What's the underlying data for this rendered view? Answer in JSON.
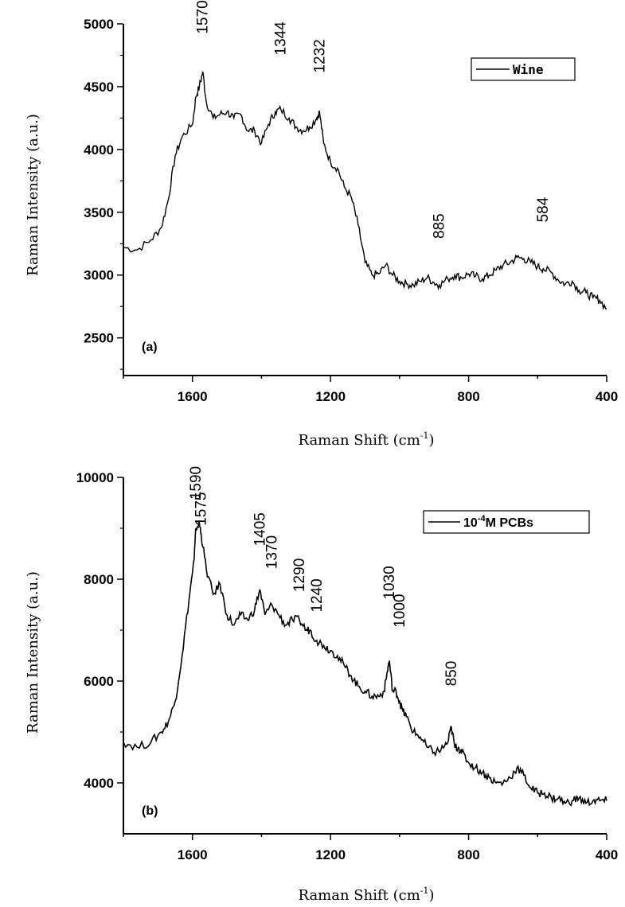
{
  "chart_data": [
    {
      "type": "line",
      "panel_label": "(a)",
      "xlabel": "Raman Shift (cm",
      "xlabel_sup": "-1",
      "xlabel_close": ")",
      "ylabel": "Raman Intensity (a.u.)",
      "xlim": [
        1800,
        400
      ],
      "ylim": [
        2200,
        5000
      ],
      "xticks": [
        1600,
        1200,
        800,
        400
      ],
      "yticks": [
        2500,
        3000,
        3500,
        4000,
        4500,
        5000
      ],
      "legend": {
        "text": "Wine",
        "position": "top-right"
      },
      "series": [
        {
          "name": "Wine",
          "x": [
            1800,
            1760,
            1720,
            1690,
            1670,
            1650,
            1630,
            1600,
            1590,
            1580,
            1570,
            1560,
            1540,
            1520,
            1500,
            1480,
            1460,
            1440,
            1420,
            1400,
            1380,
            1360,
            1344,
            1320,
            1300,
            1280,
            1260,
            1240,
            1232,
            1220,
            1200,
            1180,
            1160,
            1140,
            1120,
            1100,
            1080,
            1060,
            1040,
            1020,
            1000,
            980,
            960,
            940,
            920,
            900,
            885,
            860,
            840,
            820,
            800,
            780,
            760,
            740,
            720,
            700,
            680,
            660,
            640,
            620,
            600,
            584,
            560,
            540,
            520,
            500,
            480,
            460,
            440,
            420,
            400
          ],
          "y": [
            3220,
            3200,
            3280,
            3380,
            3600,
            3950,
            4100,
            4200,
            4420,
            4500,
            4620,
            4380,
            4250,
            4280,
            4300,
            4250,
            4280,
            4150,
            4150,
            4050,
            4200,
            4300,
            4320,
            4250,
            4180,
            4150,
            4180,
            4250,
            4300,
            4050,
            3900,
            3850,
            3700,
            3620,
            3400,
            3100,
            3000,
            3010,
            3080,
            3000,
            2950,
            2930,
            2920,
            2950,
            2980,
            2940,
            2920,
            2970,
            3000,
            2980,
            3010,
            2990,
            2970,
            3000,
            3040,
            3080,
            3100,
            3140,
            3130,
            3100,
            3070,
            3050,
            3020,
            2960,
            2930,
            2950,
            2880,
            2860,
            2820,
            2800,
            2730
          ]
        }
      ],
      "annotations": [
        {
          "text": "1570",
          "x": 1570,
          "y": 4920
        },
        {
          "text": "1344",
          "x": 1344,
          "y": 4750
        },
        {
          "text": "1232",
          "x": 1232,
          "y": 4610
        },
        {
          "text": "885",
          "x": 885,
          "y": 3290
        },
        {
          "text": "584",
          "x": 584,
          "y": 3420
        }
      ]
    },
    {
      "type": "line",
      "panel_label": "(b)",
      "xlabel": "Raman Shift (cm",
      "xlabel_sup": "-1",
      "xlabel_close": ")",
      "ylabel": "Raman Intensity (a.u.)",
      "xlim": [
        1800,
        400
      ],
      "ylim": [
        3000,
        10000
      ],
      "xticks": [
        1600,
        1200,
        800,
        400
      ],
      "yticks": [
        4000,
        6000,
        8000,
        10000
      ],
      "legend": {
        "text_pre": "10",
        "text_sup": "-4",
        "text_post": "M PCBs",
        "position": "top-right"
      },
      "series": [
        {
          "name": "10-4M PCBs",
          "x": [
            1800,
            1760,
            1720,
            1690,
            1670,
            1650,
            1630,
            1610,
            1595,
            1590,
            1580,
            1575,
            1560,
            1540,
            1520,
            1500,
            1480,
            1460,
            1440,
            1420,
            1405,
            1390,
            1370,
            1350,
            1330,
            1310,
            1290,
            1270,
            1260,
            1240,
            1220,
            1200,
            1180,
            1160,
            1140,
            1120,
            1100,
            1080,
            1060,
            1045,
            1035,
            1030,
            1020,
            1010,
            1000,
            990,
            980,
            960,
            940,
            920,
            900,
            880,
            860,
            850,
            840,
            830,
            820,
            800,
            780,
            760,
            740,
            720,
            700,
            680,
            660,
            640,
            620,
            600,
            580,
            560,
            540,
            520,
            500,
            480,
            460,
            440,
            420,
            400
          ],
          "y": [
            4800,
            4700,
            4800,
            5000,
            5200,
            5600,
            6500,
            7600,
            8400,
            9000,
            9100,
            8900,
            8200,
            7700,
            7900,
            7300,
            7100,
            7300,
            7200,
            7400,
            7800,
            7300,
            7500,
            7300,
            7100,
            7200,
            7200,
            7000,
            7000,
            6800,
            6700,
            6600,
            6500,
            6300,
            6100,
            5900,
            5800,
            5700,
            5700,
            5800,
            6200,
            6400,
            5800,
            5800,
            5600,
            5400,
            5300,
            5000,
            4900,
            4700,
            4600,
            4650,
            4800,
            5100,
            4700,
            4700,
            4600,
            4400,
            4300,
            4200,
            4100,
            4000,
            4000,
            4100,
            4300,
            4150,
            3900,
            3800,
            3800,
            3700,
            3700,
            3600,
            3650,
            3700,
            3600,
            3650,
            3650,
            3650
          ]
        }
      ],
      "annotations": [
        {
          "text": "1590",
          "x": 1590,
          "y": 9560
        },
        {
          "text": "1575",
          "x": 1575,
          "y": 9050
        },
        {
          "text": "1405",
          "x": 1405,
          "y": 8650
        },
        {
          "text": "1370",
          "x": 1370,
          "y": 8200
        },
        {
          "text": "1290",
          "x": 1290,
          "y": 7750
        },
        {
          "text": "1240",
          "x": 1240,
          "y": 7350
        },
        {
          "text": "1030",
          "x": 1030,
          "y": 7600
        },
        {
          "text": "1000",
          "x": 1000,
          "y": 7050
        },
        {
          "text": "850",
          "x": 850,
          "y": 5900
        }
      ]
    }
  ]
}
